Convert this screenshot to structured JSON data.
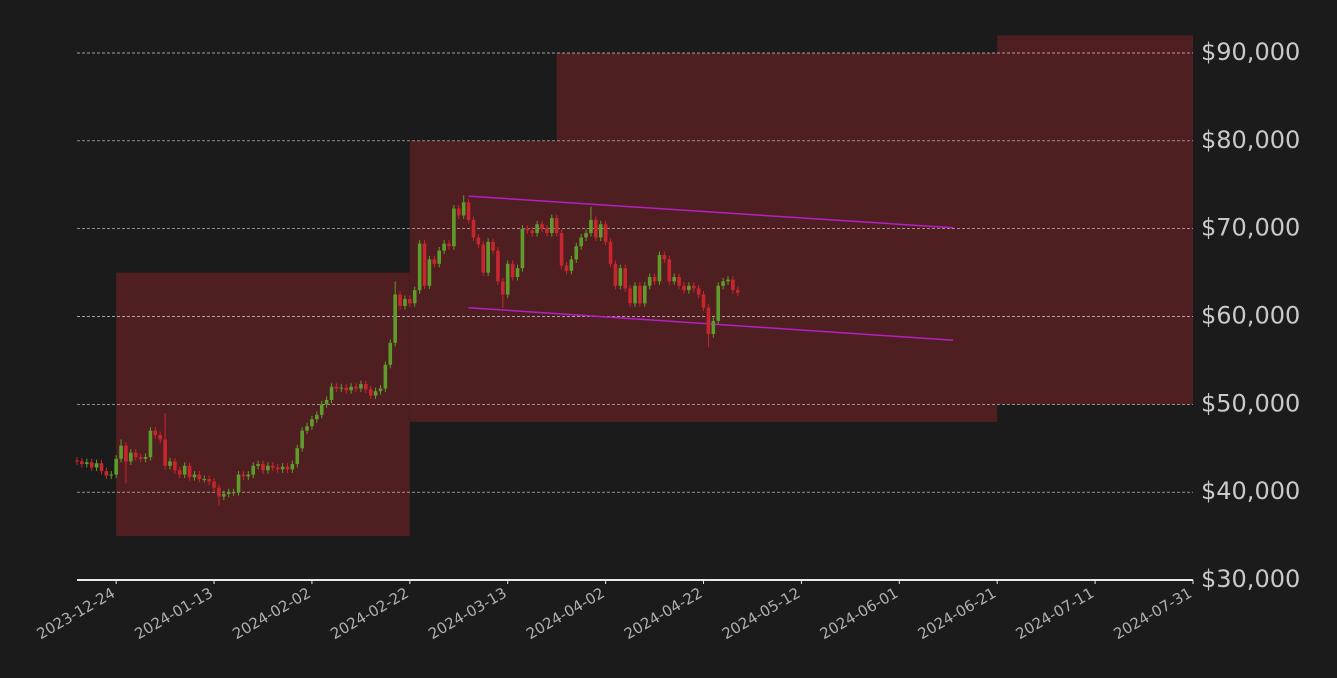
{
  "chart_data": {
    "type": "candlestick",
    "x": [
      "2023-12-16",
      "2023-12-17",
      "2023-12-18",
      "2023-12-19",
      "2023-12-20",
      "2023-12-21",
      "2023-12-22",
      "2023-12-23",
      "2023-12-24",
      "2023-12-25",
      "2023-12-26",
      "2023-12-27",
      "2023-12-28",
      "2023-12-29",
      "2023-12-30",
      "2023-12-31",
      "2024-01-01",
      "2024-01-02",
      "2024-01-03",
      "2024-01-04",
      "2024-01-05",
      "2024-01-06",
      "2024-01-07",
      "2024-01-08",
      "2024-01-09",
      "2024-01-10",
      "2024-01-11",
      "2024-01-12",
      "2024-01-13",
      "2024-01-14",
      "2024-01-15",
      "2024-01-16",
      "2024-01-17",
      "2024-01-18",
      "2024-01-19",
      "2024-01-20",
      "2024-01-21",
      "2024-01-22",
      "2024-01-23",
      "2024-01-24",
      "2024-01-25",
      "2024-01-26",
      "2024-01-27",
      "2024-01-28",
      "2024-01-29",
      "2024-01-30",
      "2024-01-31",
      "2024-02-01",
      "2024-02-02",
      "2024-02-03",
      "2024-02-04",
      "2024-02-05",
      "2024-02-06",
      "2024-02-07",
      "2024-02-08",
      "2024-02-09",
      "2024-02-10",
      "2024-02-11",
      "2024-02-12",
      "2024-02-13",
      "2024-02-14",
      "2024-02-15",
      "2024-02-16",
      "2024-02-17",
      "2024-02-18",
      "2024-02-19",
      "2024-02-20",
      "2024-02-21",
      "2024-02-22",
      "2024-02-23",
      "2024-02-24",
      "2024-02-25",
      "2024-02-26",
      "2024-02-27",
      "2024-02-28",
      "2024-02-29",
      "2024-03-01",
      "2024-03-02",
      "2024-03-03",
      "2024-03-04",
      "2024-03-05",
      "2024-03-06",
      "2024-03-07",
      "2024-03-08",
      "2024-03-09",
      "2024-03-10",
      "2024-03-11",
      "2024-03-12",
      "2024-03-13",
      "2024-03-14",
      "2024-03-15",
      "2024-03-16",
      "2024-03-17",
      "2024-03-18",
      "2024-03-19",
      "2024-03-20",
      "2024-03-21",
      "2024-03-22",
      "2024-03-23",
      "2024-03-24",
      "2024-03-25",
      "2024-03-26",
      "2024-03-27",
      "2024-03-28",
      "2024-03-29",
      "2024-03-30",
      "2024-03-31",
      "2024-04-01",
      "2024-04-02",
      "2024-04-03",
      "2024-04-04",
      "2024-04-05",
      "2024-04-06",
      "2024-04-07",
      "2024-04-08",
      "2024-04-09",
      "2024-04-10",
      "2024-04-11",
      "2024-04-12",
      "2024-04-13",
      "2024-04-14",
      "2024-04-15",
      "2024-04-16",
      "2024-04-17",
      "2024-04-18",
      "2024-04-19",
      "2024-04-20",
      "2024-04-21",
      "2024-04-22",
      "2024-04-23",
      "2024-04-24",
      "2024-04-25",
      "2024-04-26",
      "2024-04-27",
      "2024-04-28",
      "2024-04-29"
    ],
    "open": [
      43600,
      43500,
      43200,
      43400,
      42800,
      43300,
      42400,
      41900,
      42000,
      43800,
      45300,
      43500,
      44500,
      44000,
      43800,
      44000,
      47000,
      46500,
      46000,
      43000,
      43500,
      42500,
      42000,
      43000,
      41700,
      42000,
      41500,
      41500,
      41200,
      40500,
      39500,
      39800,
      40000,
      40000,
      42000,
      41800,
      42000,
      43000,
      43200,
      42500,
      43000,
      42800,
      42600,
      42900,
      42600,
      43200,
      45000,
      47000,
      47500,
      48300,
      48800,
      50000,
      50500,
      52000,
      51800,
      51900,
      51600,
      52000,
      51800,
      52300,
      51700,
      51000,
      51500,
      51800,
      54500,
      57000,
      62500,
      61200,
      62000,
      61500,
      63000,
      68300,
      63500,
      66500,
      66000,
      67500,
      68300,
      68000,
      72300,
      71500,
      73000,
      71000,
      69000,
      68200,
      65000,
      68500,
      67500,
      64000,
      62500,
      66000,
      64500,
      65500,
      70000,
      69800,
      69500,
      70500,
      70000,
      69500,
      71200,
      69500,
      65800,
      65200,
      66500,
      68000,
      69000,
      69500,
      71000,
      69000,
      70500,
      68500,
      66000,
      63500,
      65500,
      63200,
      61500,
      63500,
      61500,
      63500,
      64500,
      64000,
      67000,
      66500,
      64000,
      64500,
      63500,
      63000,
      63500,
      63200,
      62500,
      61000,
      58000,
      59500,
      63500,
      64000,
      64200,
      63000
    ],
    "high": [
      44000,
      43900,
      43800,
      43800,
      43700,
      43700,
      42800,
      42400,
      44200,
      46000,
      45700,
      44900,
      44900,
      44400,
      44400,
      47400,
      47400,
      46900,
      49000,
      43900,
      43900,
      42900,
      43400,
      43400,
      42400,
      42400,
      41900,
      41900,
      41600,
      40900,
      40200,
      40400,
      40400,
      42400,
      42400,
      42400,
      43400,
      43600,
      43600,
      43400,
      43400,
      43200,
      43300,
      43300,
      43600,
      45400,
      47400,
      47900,
      48700,
      49200,
      50400,
      50900,
      52400,
      52400,
      52300,
      52300,
      52400,
      52400,
      52700,
      52700,
      52100,
      51900,
      52200,
      54900,
      57400,
      64000,
      62900,
      62400,
      62400,
      63400,
      68700,
      68700,
      66900,
      66900,
      67900,
      68700,
      68700,
      72700,
      72700,
      73800,
      73400,
      71400,
      69400,
      68600,
      68900,
      68900,
      67900,
      64400,
      66400,
      66400,
      65900,
      70400,
      70400,
      70200,
      70900,
      70900,
      70400,
      71600,
      71600,
      69900,
      66200,
      66900,
      68400,
      69400,
      69900,
      72500,
      71400,
      70900,
      70900,
      68900,
      66400,
      65900,
      65900,
      63600,
      63900,
      63900,
      63900,
      64900,
      64900,
      67400,
      67400,
      66900,
      64900,
      64900,
      63900,
      63900,
      63900,
      63600,
      62900,
      61400,
      59900,
      63900,
      64400,
      64600,
      64600,
      63400
    ],
    "low": [
      43100,
      42800,
      42800,
      42400,
      42400,
      42000,
      41500,
      41500,
      41600,
      43400,
      41000,
      43100,
      43600,
      43400,
      43400,
      43600,
      46100,
      45600,
      42600,
      42600,
      42100,
      41600,
      41600,
      41300,
      41300,
      41100,
      41100,
      40800,
      40100,
      38500,
      39100,
      39400,
      39600,
      39600,
      41400,
      41400,
      41600,
      42600,
      42100,
      42100,
      42400,
      42200,
      42200,
      42200,
      42200,
      42800,
      44600,
      46600,
      47100,
      47900,
      48400,
      49600,
      50100,
      51400,
      51400,
      51200,
      51200,
      51400,
      51400,
      51300,
      50600,
      50600,
      51100,
      51400,
      54100,
      56600,
      60800,
      60800,
      61100,
      61100,
      62600,
      63100,
      63100,
      65600,
      65600,
      67100,
      67600,
      67600,
      71100,
      71100,
      70600,
      68600,
      67800,
      64600,
      64600,
      67100,
      63600,
      61000,
      62100,
      64100,
      64100,
      65100,
      69400,
      69100,
      69100,
      69600,
      69100,
      69100,
      69100,
      65400,
      64800,
      64800,
      66100,
      67600,
      68600,
      69100,
      68600,
      68600,
      68100,
      65600,
      63100,
      63100,
      62800,
      61100,
      61100,
      61100,
      61100,
      63100,
      63600,
      63600,
      66100,
      63600,
      63600,
      63100,
      62600,
      62600,
      62800,
      62100,
      60600,
      56500,
      57600,
      59100,
      63100,
      63600,
      62600,
      62300
    ],
    "close": [
      43500,
      43200,
      43400,
      42800,
      43300,
      42400,
      41900,
      42000,
      43800,
      45300,
      43500,
      44500,
      44000,
      43800,
      44000,
      47000,
      46500,
      46000,
      43000,
      43500,
      42500,
      42000,
      43000,
      41700,
      42000,
      41500,
      41500,
      41200,
      40500,
      39500,
      39800,
      40000,
      40000,
      42000,
      41800,
      42000,
      43000,
      43200,
      42500,
      43000,
      42800,
      42600,
      42900,
      42600,
      43200,
      45000,
      47000,
      47500,
      48300,
      48800,
      50000,
      50500,
      52000,
      51800,
      51900,
      51600,
      52000,
      51800,
      52300,
      51700,
      51000,
      51500,
      51800,
      54500,
      57000,
      62500,
      61200,
      62000,
      61500,
      63000,
      68300,
      63500,
      66500,
      66000,
      67500,
      68300,
      68000,
      72300,
      71500,
      73000,
      71000,
      69000,
      68200,
      65000,
      68500,
      67500,
      64000,
      62500,
      66000,
      64500,
      65500,
      70000,
      69800,
      69500,
      70500,
      70000,
      69500,
      71200,
      69500,
      65800,
      65200,
      66500,
      68000,
      69000,
      69500,
      71000,
      69000,
      70500,
      68500,
      66000,
      63500,
      65500,
      63200,
      61500,
      63500,
      61500,
      63500,
      64500,
      64000,
      67000,
      66500,
      64000,
      64500,
      63500,
      63000,
      63500,
      63200,
      62500,
      61000,
      58000,
      59500,
      63500,
      64000,
      64200,
      63000,
      62700
    ],
    "up_color": "#5e9c2c",
    "down_color": "#c8262e",
    "xlim": [
      "2023-12-16",
      "2024-07-31"
    ],
    "xticks": [
      "2023-12-24",
      "2024-01-13",
      "2024-02-02",
      "2024-02-22",
      "2024-03-13",
      "2024-04-02",
      "2024-04-22",
      "2024-05-12",
      "2024-06-01",
      "2024-06-21",
      "2024-07-11",
      "2024-07-31"
    ],
    "ylim": [
      30000,
      90000
    ],
    "yticks": [
      {
        "value": 30000,
        "label": "$30,000"
      },
      {
        "value": 40000,
        "label": "$40,000"
      },
      {
        "value": 50000,
        "label": "$50,000"
      },
      {
        "value": 60000,
        "label": "$60,000"
      },
      {
        "value": 70000,
        "label": "$70,000"
      },
      {
        "value": 80000,
        "label": "$80,000"
      },
      {
        "value": 90000,
        "label": "$90,000"
      }
    ],
    "grid": true,
    "zone_color": "#4f1e21",
    "zones": [
      {
        "x0": "2023-12-24",
        "x1": "2024-02-22",
        "y0": 35000,
        "y1": 65000
      },
      {
        "x0": "2024-02-22",
        "x1": "2024-06-21",
        "y0": 48000,
        "y1": 80000
      },
      {
        "x0": "2024-03-23",
        "x1": "2024-07-31",
        "y0": 50000,
        "y1": 90000
      },
      {
        "x0": "2024-06-21",
        "x1": "2024-07-31",
        "y0": 50000,
        "y1": 92000
      }
    ],
    "trendline_color": "#b41fc6",
    "trendlines": [
      {
        "x0": "2024-03-05",
        "y0": 73700,
        "x1": "2024-06-12",
        "y1": 70100
      },
      {
        "x0": "2024-03-05",
        "y0": 61000,
        "x1": "2024-06-12",
        "y1": 57300
      }
    ]
  }
}
